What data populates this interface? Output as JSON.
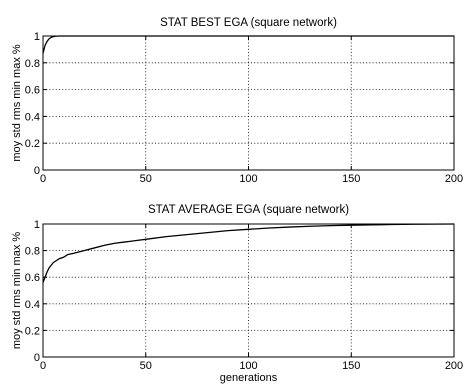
{
  "chart_data": [
    {
      "type": "line",
      "title": "STAT BEST EGA (square network)",
      "xlabel": "",
      "ylabel": "moy std rms min max %",
      "xlim": [
        0,
        200
      ],
      "ylim": [
        0,
        1
      ],
      "xticks": [
        0,
        50,
        100,
        150,
        200
      ],
      "xtick_labels": [
        "0",
        "50",
        "100",
        "150",
        "200"
      ],
      "yticks": [
        0,
        0.2,
        0.4,
        0.6,
        0.8,
        1
      ],
      "ytick_labels": [
        "0",
        "0.2",
        "0.4",
        "0.6",
        "0.8",
        "1"
      ],
      "grid": true,
      "series": [
        {
          "color": "#000000",
          "x": [
            0,
            1,
            2,
            3,
            4,
            5,
            6,
            8,
            10,
            15,
            20,
            30,
            50,
            75,
            100,
            125,
            150,
            175,
            200
          ],
          "values": [
            0.87,
            0.93,
            0.96,
            0.98,
            0.99,
            0.995,
            0.998,
            1.0,
            1.0,
            1.0,
            1.0,
            1.0,
            1.0,
            1.0,
            1.0,
            1.0,
            1.0,
            1.0,
            1.0
          ]
        }
      ]
    },
    {
      "type": "line",
      "title": "STAT AVERAGE EGA (square network)",
      "xlabel": "generations",
      "ylabel": "moy std rms min max %",
      "xlim": [
        0,
        200
      ],
      "ylim": [
        0,
        1
      ],
      "xticks": [
        0,
        50,
        100,
        150,
        200
      ],
      "xtick_labels": [
        "0",
        "50",
        "100",
        "150",
        "200"
      ],
      "yticks": [
        0,
        0.2,
        0.4,
        0.6,
        0.8,
        1
      ],
      "ytick_labels": [
        "0",
        "0.2",
        "0.4",
        "0.6",
        "0.8",
        "1"
      ],
      "grid": true,
      "series": [
        {
          "color": "#000000",
          "x": [
            0,
            1,
            2,
            3,
            4,
            5,
            6,
            8,
            10,
            12,
            15,
            20,
            25,
            30,
            35,
            40,
            45,
            50,
            60,
            70,
            80,
            90,
            100,
            110,
            120,
            130,
            140,
            150,
            160,
            170,
            180,
            190,
            200
          ],
          "values": [
            0.56,
            0.6,
            0.64,
            0.67,
            0.69,
            0.71,
            0.72,
            0.74,
            0.75,
            0.77,
            0.78,
            0.8,
            0.82,
            0.84,
            0.855,
            0.865,
            0.875,
            0.885,
            0.905,
            0.92,
            0.935,
            0.95,
            0.96,
            0.97,
            0.977,
            0.983,
            0.988,
            0.991,
            0.994,
            0.996,
            0.998,
            0.999,
            1.0
          ]
        }
      ]
    }
  ]
}
